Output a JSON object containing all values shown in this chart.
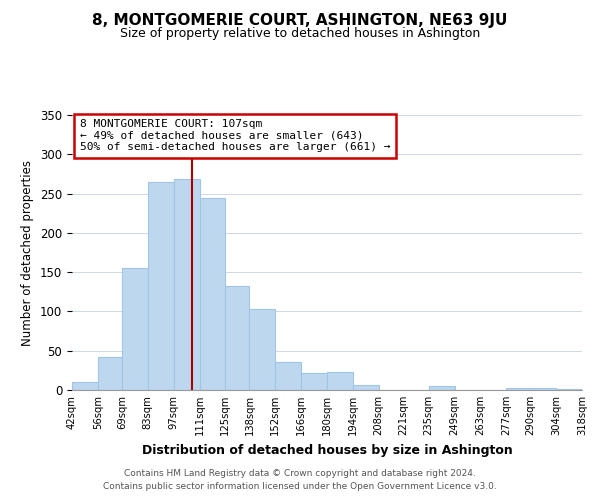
{
  "title": "8, MONTGOMERIE COURT, ASHINGTON, NE63 9JU",
  "subtitle": "Size of property relative to detached houses in Ashington",
  "xlabel": "Distribution of detached houses by size in Ashington",
  "ylabel": "Number of detached properties",
  "bar_color": "#bdd7ee",
  "bar_edge_color": "#9fc5e8",
  "bins": [
    42,
    56,
    69,
    83,
    97,
    111,
    125,
    138,
    152,
    166,
    180,
    194,
    208,
    221,
    235,
    249,
    263,
    277,
    290,
    304,
    318
  ],
  "counts": [
    10,
    42,
    155,
    265,
    268,
    245,
    132,
    103,
    36,
    22,
    23,
    7,
    0,
    0,
    5,
    0,
    0,
    3,
    2,
    1
  ],
  "tick_labels": [
    "42sqm",
    "56sqm",
    "69sqm",
    "83sqm",
    "97sqm",
    "111sqm",
    "125sqm",
    "138sqm",
    "152sqm",
    "166sqm",
    "180sqm",
    "194sqm",
    "208sqm",
    "221sqm",
    "235sqm",
    "249sqm",
    "263sqm",
    "277sqm",
    "290sqm",
    "304sqm",
    "318sqm"
  ],
  "property_value": 107,
  "annotation_title": "8 MONTGOMERIE COURT: 107sqm",
  "annotation_line1": "← 49% of detached houses are smaller (643)",
  "annotation_line2": "50% of semi-detached houses are larger (661) →",
  "annotation_box_color": "#ffffff",
  "annotation_box_edge": "#cc0000",
  "vline_color": "#aa0000",
  "ylim": [
    0,
    350
  ],
  "footer1": "Contains HM Land Registry data © Crown copyright and database right 2024.",
  "footer2": "Contains public sector information licensed under the Open Government Licence v3.0."
}
